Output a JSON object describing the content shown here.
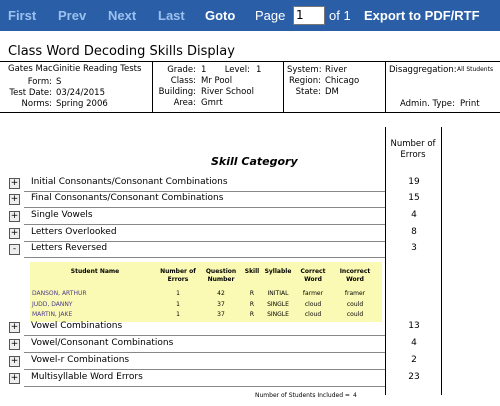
{
  "toolbar": {
    "first": "First",
    "prev": "Prev",
    "next": "Next",
    "last": "Last",
    "goto": "Goto",
    "page_label": "Page",
    "page_value": "1",
    "page_of": "of 1",
    "export": "Export to PDF/RTF"
  },
  "report": {
    "title": "Class Word Decoding Skills Display",
    "info": {
      "test": "Gates MacGinitie Reading Tests",
      "form": {
        "label": "Form:",
        "value": "S"
      },
      "test_date": {
        "label": "Test Date:",
        "value": "03/24/2015"
      },
      "norms": {
        "label": "Norms:",
        "value": "Spring 2006"
      },
      "grade": {
        "label": "Grade:",
        "value": "1"
      },
      "level": {
        "label": "Level:",
        "value": "1"
      },
      "class": {
        "label": "Class:",
        "value": "Mr Pool"
      },
      "building": {
        "label": "Building:",
        "value": "River School"
      },
      "area": {
        "label": "Area:",
        "value": "Gmrt"
      },
      "system": {
        "label": "System:",
        "value": "River"
      },
      "region": {
        "label": "Region:",
        "value": "Chicago"
      },
      "state": {
        "label": "State:",
        "value": "DM"
      },
      "disaggregation": {
        "label": "Disaggregation:",
        "value": "All Students"
      },
      "admin_type": {
        "label": "Admin. Type:",
        "value": "Print"
      }
    },
    "table": {
      "skill_header": "Skill Category",
      "errors_header": "Number of Errors",
      "skills": [
        {
          "toggle": "+",
          "name": "Initial Consonants/Consonant Combinations",
          "errors": "19"
        },
        {
          "toggle": "+",
          "name": "Final Consonants/Consonant Combinations",
          "errors": "15"
        },
        {
          "toggle": "+",
          "name": "Single Vowels",
          "errors": "4"
        },
        {
          "toggle": "+",
          "name": "Letters Overlooked",
          "errors": "8"
        },
        {
          "toggle": "-",
          "name": "Letters Reversed",
          "errors": "3"
        },
        {
          "toggle": "+",
          "name": "Vowel Combinations",
          "errors": "13"
        },
        {
          "toggle": "+",
          "name": "Vowel/Consonant Combinations",
          "errors": "4"
        },
        {
          "toggle": "+",
          "name": "Vowel-r Combinations",
          "errors": "2"
        },
        {
          "toggle": "+",
          "name": "Multisyllable Word Errors",
          "errors": "23"
        }
      ],
      "students": {
        "header": [
          "Student Name",
          "Number of Errors",
          "Question Number",
          "Skill",
          "Syllable",
          "Correct Word",
          "Incorrect Word"
        ],
        "rows": [
          [
            "DANSON, ARTHUR",
            "1",
            "42",
            "R",
            "INITIAL",
            "farmer",
            "framer"
          ],
          [
            "JUDD, DANNY",
            "1",
            "37",
            "R",
            "SINGLE",
            "cloud",
            "could"
          ],
          [
            "MARTIN, JAKE",
            "1",
            "37",
            "R",
            "SINGLE",
            "cloud",
            "could"
          ]
        ]
      }
    },
    "footer": {
      "label": "Number of Students Included =",
      "value": "4"
    }
  }
}
